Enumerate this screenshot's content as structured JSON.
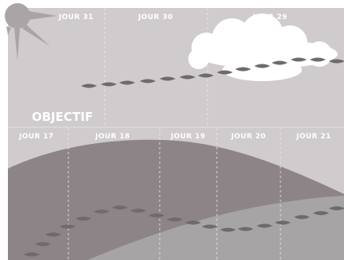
{
  "colors": {
    "sky": "#d0cbcc",
    "hill_dark": "#8c8486",
    "hill_light": "#a7a4a6",
    "grid_line": "#eeeaeb",
    "footprint": "#6f6a6c",
    "sun": "#a9a5a6",
    "cloud": "#ffffff",
    "text": "#ffffff"
  },
  "top_panel": {
    "day_labels": [
      {
        "id": "jour-31",
        "text": "JOUR  31"
      },
      {
        "id": "jour-30",
        "text": "JOUR  30"
      },
      {
        "id": "jour-29",
        "text": "JOUR  29"
      }
    ],
    "objective": "OBJECTIF"
  },
  "bottom_panel": {
    "day_labels": [
      {
        "id": "jour-17",
        "text": "JOUR  17"
      },
      {
        "id": "jour-18",
        "text": "JOUR  18"
      },
      {
        "id": "jour-19",
        "text": "JOUR  19"
      },
      {
        "id": "jour-20",
        "text": "JOUR  20"
      },
      {
        "id": "jour-21",
        "text": "JOUR  21"
      }
    ]
  },
  "icons": {
    "sun": "sun-icon",
    "cloud": "cloud-icon",
    "footprint": "footprint-icon"
  }
}
